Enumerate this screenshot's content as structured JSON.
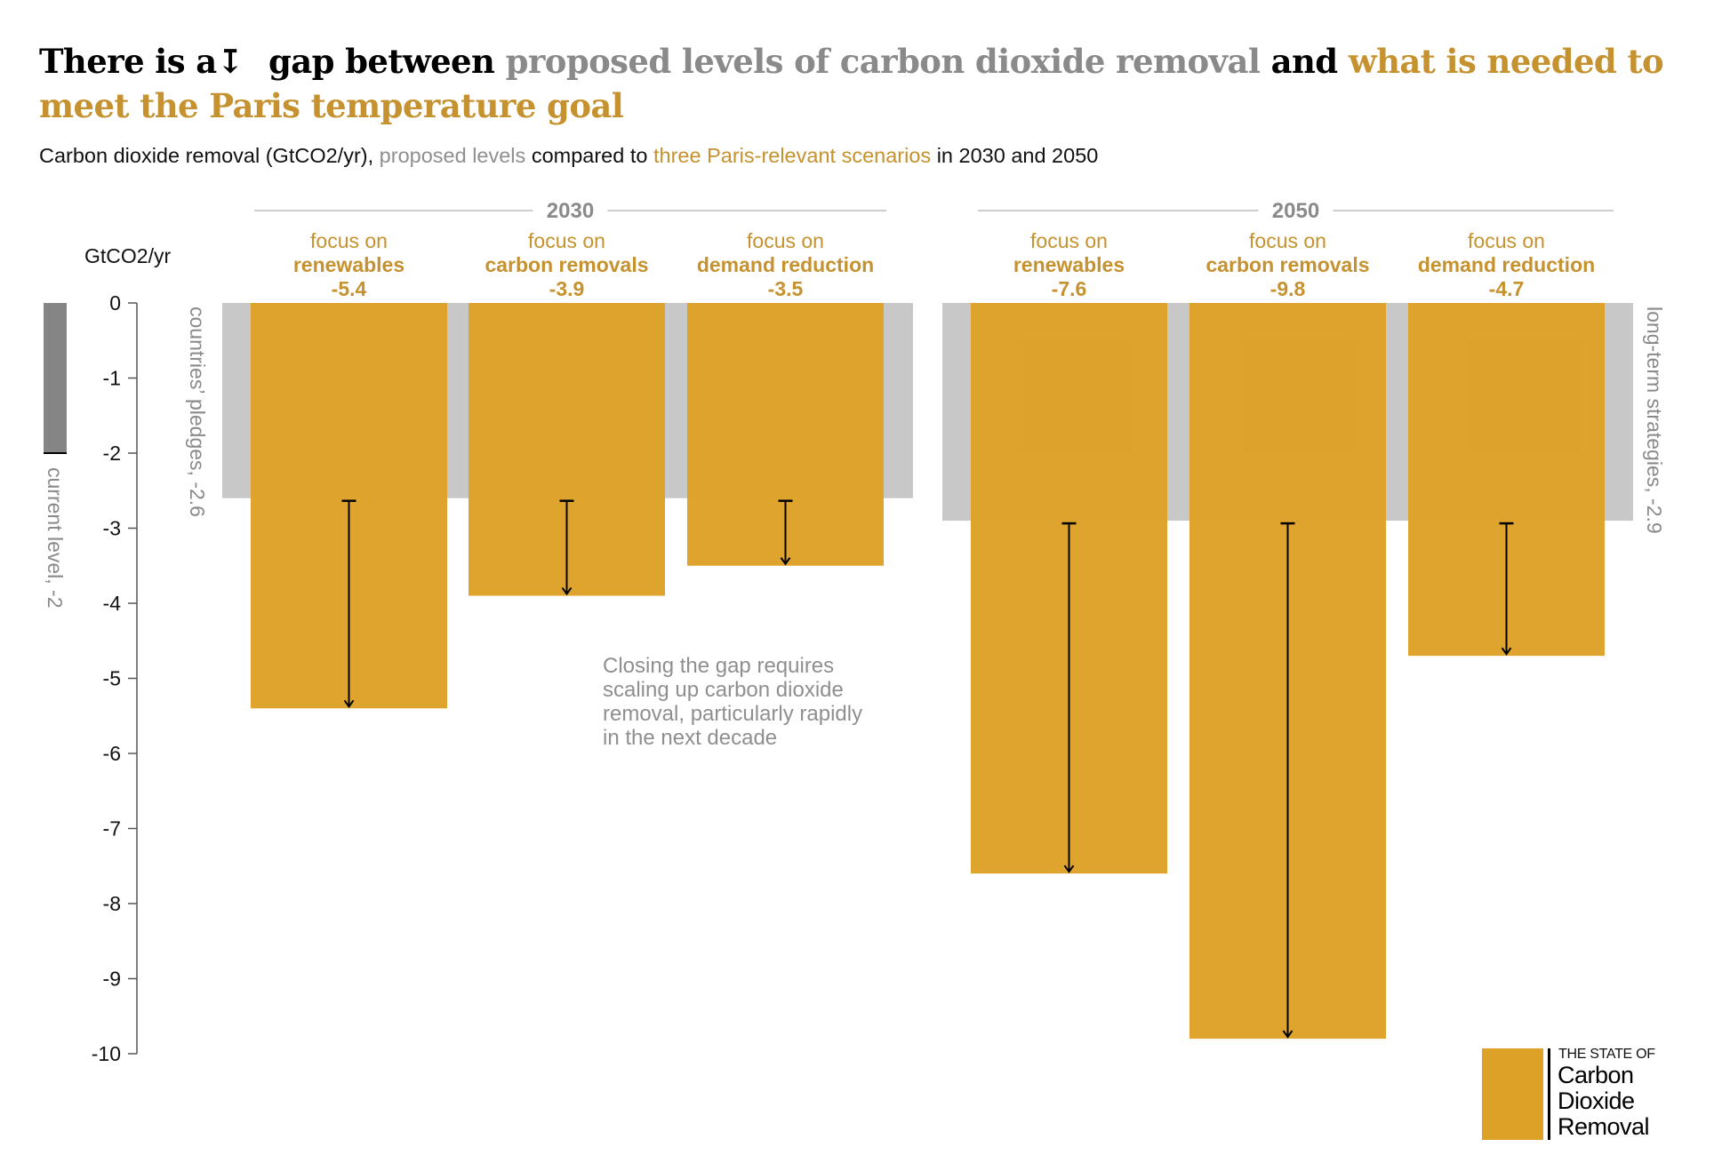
{
  "title": {
    "part1": "There is a",
    "arrow_icon": "↧",
    "part2": "gap between",
    "part3": "proposed levels of carbon dioxide removal",
    "part4": "and",
    "part5": "what is needed to meet the Paris temperature goal"
  },
  "subtitle": {
    "part1": "Carbon dioxide removal (GtCO2/yr),",
    "part2": "proposed levels",
    "part3": "compared to",
    "part4": "three Paris-relevant scenarios",
    "part5": "in 2030 and 2050"
  },
  "colors": {
    "gold": "#dea127",
    "gold_text": "#c5922f",
    "grey_band": "#c8c8c8",
    "current_level": "#858585",
    "grey_text": "#8a8a8a"
  },
  "chart_data": {
    "type": "bar",
    "title": "There is a gap between proposed levels of carbon dioxide removal and what is needed to meet the Paris temperature goal",
    "ylabel": "GtCO2/yr",
    "ylim": [
      -10,
      0
    ],
    "yticks": [
      0,
      -1,
      -2,
      -3,
      -4,
      -5,
      -6,
      -7,
      -8,
      -9,
      -10
    ],
    "grid": false,
    "current_level": {
      "label": "current level, -2",
      "value": -2
    },
    "groups": [
      {
        "year": "2030",
        "proposed": {
          "label": "countries’ pledges, -2.6",
          "value": -2.6
        },
        "scenarios": [
          {
            "line1": "focus on",
            "name": "renewables",
            "value_label": "-5.4",
            "value": -5.4
          },
          {
            "line1": "focus on",
            "name": "carbon removals",
            "value_label": "-3.9",
            "value": -3.9
          },
          {
            "line1": "focus on",
            "name": "demand reduction",
            "value_label": "-3.5",
            "value": -3.5
          }
        ]
      },
      {
        "year": "2050",
        "proposed": {
          "label": "long-term strategies, -2.9",
          "value": -2.9
        },
        "scenarios": [
          {
            "line1": "focus on",
            "name": "renewables",
            "value_label": "-7.6",
            "value": -7.6
          },
          {
            "line1": "focus on",
            "name": "carbon removals",
            "value_label": "-9.8",
            "value": -9.8
          },
          {
            "line1": "focus on",
            "name": "demand reduction",
            "value_label": "-4.7",
            "value": -4.7
          }
        ]
      }
    ],
    "annotation": [
      "Closing the gap requires",
      "scaling up carbon dioxide",
      "removal, particularly rapidly",
      "in the next decade"
    ]
  },
  "logo": {
    "line1": "THE STATE OF",
    "line2": "Carbon",
    "line3": "Dioxide",
    "line4": "Removal"
  }
}
